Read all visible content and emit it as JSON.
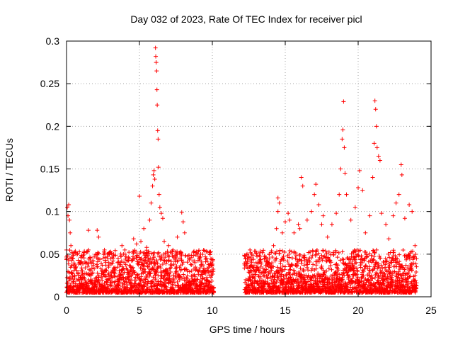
{
  "chart_data": {
    "type": "scatter",
    "title": "Day 032 of 2023, Rate Of TEC Index for receiver picl",
    "xlabel": "GPS time / hours",
    "ylabel": "ROTI / TECUs",
    "xlim": [
      0,
      25
    ],
    "ylim": [
      0,
      0.3
    ],
    "x_ticks": [
      0,
      5,
      10,
      15,
      20,
      25
    ],
    "y_ticks": [
      0,
      0.05,
      0.1,
      0.15,
      0.2,
      0.25,
      0.3
    ],
    "x_tick_labels": [
      "0",
      "5",
      "10",
      "15",
      "20",
      "25"
    ],
    "y_tick_labels": [
      "0",
      "0.05",
      "0.1",
      "0.15",
      "0.2",
      "0.25",
      "0.3"
    ],
    "grid": true,
    "marker": "+",
    "series_color": "#ff0000",
    "data_gap_hours": [
      10.1,
      12.2
    ],
    "points": [
      [
        0.0,
        0.055
      ],
      [
        0.05,
        0.105
      ],
      [
        0.1,
        0.095
      ],
      [
        0.15,
        0.108
      ],
      [
        0.2,
        0.09
      ],
      [
        0.25,
        0.075
      ],
      [
        0.3,
        0.06
      ],
      [
        0.4,
        0.045
      ],
      [
        0.6,
        0.035
      ],
      [
        0.9,
        0.04
      ],
      [
        1.2,
        0.05
      ],
      [
        1.5,
        0.055
      ],
      [
        1.5,
        0.078
      ],
      [
        1.7,
        0.04
      ],
      [
        2.1,
        0.078
      ],
      [
        2.2,
        0.07
      ],
      [
        2.5,
        0.045
      ],
      [
        2.6,
        0.055
      ],
      [
        2.9,
        0.04
      ],
      [
        3.2,
        0.05
      ],
      [
        3.5,
        0.04
      ],
      [
        3.8,
        0.06
      ],
      [
        4.0,
        0.055
      ],
      [
        4.3,
        0.045
      ],
      [
        4.6,
        0.068
      ],
      [
        4.8,
        0.062
      ],
      [
        5.0,
        0.118
      ],
      [
        5.1,
        0.065
      ],
      [
        5.3,
        0.08
      ],
      [
        5.5,
        0.058
      ],
      [
        5.7,
        0.09
      ],
      [
        5.8,
        0.11
      ],
      [
        5.9,
        0.13
      ],
      [
        5.95,
        0.143
      ],
      [
        6.0,
        0.148
      ],
      [
        6.05,
        0.138
      ],
      [
        6.1,
        0.292
      ],
      [
        6.12,
        0.282
      ],
      [
        6.15,
        0.275
      ],
      [
        6.18,
        0.265
      ],
      [
        6.2,
        0.243
      ],
      [
        6.22,
        0.225
      ],
      [
        6.25,
        0.195
      ],
      [
        6.28,
        0.185
      ],
      [
        6.3,
        0.152
      ],
      [
        6.35,
        0.12
      ],
      [
        6.4,
        0.105
      ],
      [
        6.5,
        0.098
      ],
      [
        6.6,
        0.092
      ],
      [
        6.7,
        0.065
      ],
      [
        7.0,
        0.06
      ],
      [
        7.3,
        0.055
      ],
      [
        7.6,
        0.07
      ],
      [
        7.9,
        0.099
      ],
      [
        8.0,
        0.088
      ],
      [
        8.1,
        0.075
      ],
      [
        8.4,
        0.045
      ],
      [
        8.8,
        0.04
      ],
      [
        9.2,
        0.05
      ],
      [
        9.6,
        0.045
      ],
      [
        9.9,
        0.03
      ],
      [
        12.3,
        0.02
      ],
      [
        12.6,
        0.03
      ],
      [
        13.0,
        0.04
      ],
      [
        13.3,
        0.035
      ],
      [
        13.6,
        0.045
      ],
      [
        13.9,
        0.05
      ],
      [
        14.2,
        0.06
      ],
      [
        14.4,
        0.08
      ],
      [
        14.5,
        0.1
      ],
      [
        14.5,
        0.116
      ],
      [
        14.6,
        0.11
      ],
      [
        14.8,
        0.075
      ],
      [
        15.0,
        0.088
      ],
      [
        15.2,
        0.098
      ],
      [
        15.3,
        0.09
      ],
      [
        15.6,
        0.075
      ],
      [
        15.9,
        0.085
      ],
      [
        16.0,
        0.08
      ],
      [
        16.1,
        0.14
      ],
      [
        16.2,
        0.13
      ],
      [
        16.5,
        0.09
      ],
      [
        16.8,
        0.1
      ],
      [
        17.0,
        0.12
      ],
      [
        17.1,
        0.132
      ],
      [
        17.3,
        0.108
      ],
      [
        17.5,
        0.085
      ],
      [
        17.6,
        0.095
      ],
      [
        17.9,
        0.07
      ],
      [
        18.2,
        0.085
      ],
      [
        18.5,
        0.098
      ],
      [
        18.7,
        0.12
      ],
      [
        18.8,
        0.15
      ],
      [
        18.9,
        0.185
      ],
      [
        18.95,
        0.196
      ],
      [
        19.0,
        0.229
      ],
      [
        19.05,
        0.175
      ],
      [
        19.1,
        0.145
      ],
      [
        19.2,
        0.12
      ],
      [
        19.5,
        0.09
      ],
      [
        19.8,
        0.105
      ],
      [
        20.0,
        0.128
      ],
      [
        20.1,
        0.148
      ],
      [
        20.3,
        0.125
      ],
      [
        20.5,
        0.075
      ],
      [
        20.8,
        0.095
      ],
      [
        21.0,
        0.14
      ],
      [
        21.1,
        0.18
      ],
      [
        21.15,
        0.23
      ],
      [
        21.2,
        0.22
      ],
      [
        21.25,
        0.2
      ],
      [
        21.3,
        0.175
      ],
      [
        21.4,
        0.165
      ],
      [
        21.5,
        0.16
      ],
      [
        21.6,
        0.098
      ],
      [
        21.9,
        0.085
      ],
      [
        22.1,
        0.068
      ],
      [
        22.4,
        0.095
      ],
      [
        22.6,
        0.11
      ],
      [
        22.8,
        0.12
      ],
      [
        22.95,
        0.155
      ],
      [
        23.0,
        0.143
      ],
      [
        23.2,
        0.092
      ],
      [
        23.5,
        0.108
      ],
      [
        23.7,
        0.1
      ],
      [
        23.9,
        0.06
      ],
      [
        24.0,
        0.045
      ]
    ]
  }
}
